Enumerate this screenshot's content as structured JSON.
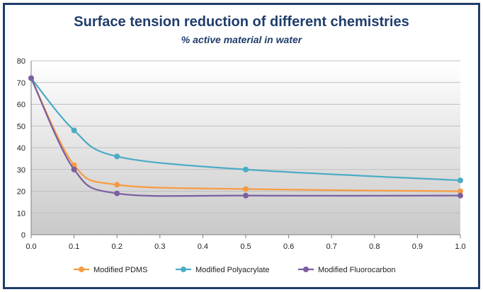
{
  "chart_data": {
    "type": "line",
    "title": "Surface tension reduction of different chemistries",
    "subtitle": "% active material in water",
    "xlabel": "",
    "ylabel": "",
    "xlim": [
      0.0,
      1.0
    ],
    "ylim": [
      0,
      80
    ],
    "x_ticks": [
      "0.0",
      "0.1",
      "0.2",
      "0.3",
      "0.4",
      "0.5",
      "0.6",
      "0.7",
      "0.8",
      "0.9",
      "1.0"
    ],
    "y_ticks": [
      "0",
      "10",
      "20",
      "30",
      "40",
      "50",
      "60",
      "70",
      "80"
    ],
    "grid": "horizontal",
    "legend_position": "bottom",
    "x": [
      0.0,
      0.1,
      0.2,
      0.5,
      1.0
    ],
    "series": [
      {
        "name": "Modified PDMS",
        "values": [
          72,
          32,
          23,
          21,
          20
        ],
        "color": "#f79c42"
      },
      {
        "name": "Modified Polyacrylate",
        "values": [
          72,
          48,
          36,
          30,
          25
        ],
        "color": "#4bacc6"
      },
      {
        "name": "Modified Fluorocarbon",
        "values": [
          72,
          30,
          19,
          18,
          18
        ],
        "color": "#7b5fa0"
      }
    ]
  },
  "colors": {
    "frame": "#1f3d6b",
    "title": "#1f3d6b",
    "plot_top": "#ffffff",
    "plot_bottom": "#c9c9c9",
    "grid": "#bfbfbf"
  }
}
